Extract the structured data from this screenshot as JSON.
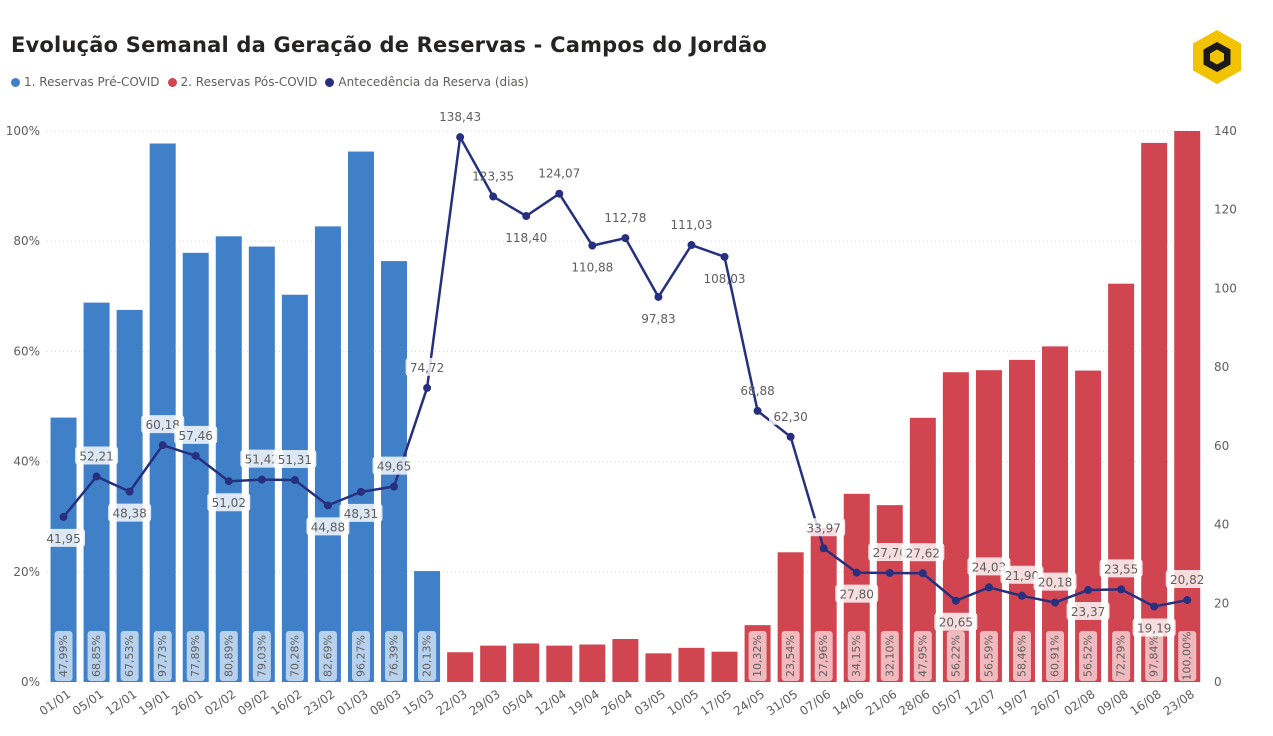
{
  "title": "Evolução Semanal da Geração de Reservas - Campos do Jordão",
  "logo": "yellow-hexagon-logo",
  "colors": {
    "pre": "#4080c8",
    "pos": "#d04550",
    "line": "#26307f",
    "pre_label_box": "#c2d9f1",
    "pos_label_box": "#f2c4c8",
    "text": "#605e5c"
  },
  "chart_data": {
    "type": "bar",
    "title": "Evolução Semanal da Geração de Reservas - Campos do Jordão",
    "xlabel": "",
    "ylabel": "",
    "ylabel_right": "",
    "legend_position": "top-left",
    "grid": true,
    "ylim": [
      0,
      1
    ],
    "ylim_right": [
      0,
      140
    ],
    "y_ticks": [
      "0%",
      "20%",
      "40%",
      "60%",
      "80%",
      "100%"
    ],
    "y_ticks_right": [
      "0",
      "20",
      "40",
      "60",
      "80",
      "100",
      "120",
      "140"
    ],
    "categories": [
      "01/01",
      "05/01",
      "12/01",
      "19/01",
      "26/01",
      "02/02",
      "09/02",
      "16/02",
      "23/02",
      "01/03",
      "08/03",
      "15/03",
      "22/03",
      "29/03",
      "05/04",
      "12/04",
      "19/04",
      "26/04",
      "03/05",
      "10/05",
      "17/05",
      "24/05",
      "31/05",
      "07/06",
      "14/06",
      "21/06",
      "28/06",
      "05/07",
      "12/07",
      "19/07",
      "26/07",
      "02/08",
      "09/08",
      "16/08",
      "23/08"
    ],
    "series": [
      {
        "name": "1. Reservas Pré-COVID",
        "kind": "bar",
        "values": [
          0.4799,
          0.6885,
          0.6753,
          0.9773,
          0.7789,
          0.8089,
          0.7903,
          0.7028,
          0.8269,
          0.9627,
          0.7639,
          0.2013,
          null,
          null,
          null,
          null,
          null,
          null,
          null,
          null,
          null,
          null,
          null,
          null,
          null,
          null,
          null,
          null,
          null,
          null,
          null,
          null,
          null,
          null,
          null
        ],
        "labels": [
          "47,99%",
          "68,85%",
          "67,53%",
          "97,73%",
          "77,89%",
          "80,89%",
          "79,03%",
          "70,28%",
          "82,69%",
          "96,27%",
          "76,39%",
          "20,13%",
          "",
          "",
          "",
          "",
          "",
          "",
          "",
          "",
          "",
          "",
          "",
          "",
          "",
          "",
          "",
          "",
          "",
          "",
          "",
          "",
          "",
          "",
          ""
        ]
      },
      {
        "name": "2. Reservas Pós-COVID",
        "kind": "bar",
        "values": [
          null,
          null,
          null,
          null,
          null,
          null,
          null,
          null,
          null,
          null,
          null,
          null,
          0.054,
          0.066,
          0.07,
          0.066,
          0.068,
          0.078,
          0.052,
          0.062,
          0.055,
          0.1032,
          0.2354,
          0.2796,
          0.3415,
          0.321,
          0.4795,
          0.5622,
          0.5659,
          0.5846,
          0.6091,
          0.5652,
          0.7229,
          0.9784,
          1.0
        ],
        "labels": [
          "",
          "",
          "",
          "",
          "",
          "",
          "",
          "",
          "",
          "",
          "",
          "",
          "",
          "",
          "",
          "",
          "",
          "",
          "",
          "",
          "",
          "10,32%",
          "23,54%",
          "27,96%",
          "34,15%",
          "32,10%",
          "47,95%",
          "56,22%",
          "56,59%",
          "58,46%",
          "60,91%",
          "56,52%",
          "72,29%",
          "97,84%",
          "100,00%"
        ]
      },
      {
        "name": "Antecedência da Reserva (dias)",
        "kind": "line",
        "axis": "right",
        "values": [
          41.95,
          52.21,
          48.38,
          60.18,
          57.46,
          51.02,
          51.42,
          51.31,
          44.88,
          48.31,
          49.65,
          74.72,
          138.43,
          123.35,
          118.4,
          124.07,
          110.88,
          112.78,
          97.83,
          111.03,
          108.03,
          68.88,
          62.3,
          33.97,
          27.8,
          27.7,
          27.62,
          20.65,
          24.03,
          21.9,
          20.18,
          23.37,
          23.55,
          19.19,
          20.82
        ],
        "labels": [
          "41,95",
          "52,21",
          "48,38",
          "60,18",
          "57,46",
          "51,02",
          "51,42",
          "51,31",
          "44,88",
          "48,31",
          "49,65",
          "74,72",
          "138,43",
          "123,35",
          "118,40",
          "124,07",
          "110,88",
          "112,78",
          "97,83",
          "111,03",
          "108,03",
          "68,88",
          "62,30",
          "33,97",
          "27,80",
          "27,70",
          "27,62",
          "20,65",
          "24,03",
          "21,90",
          "20,18",
          "23,37",
          "23,55",
          "19,19",
          "20,82"
        ]
      }
    ]
  }
}
